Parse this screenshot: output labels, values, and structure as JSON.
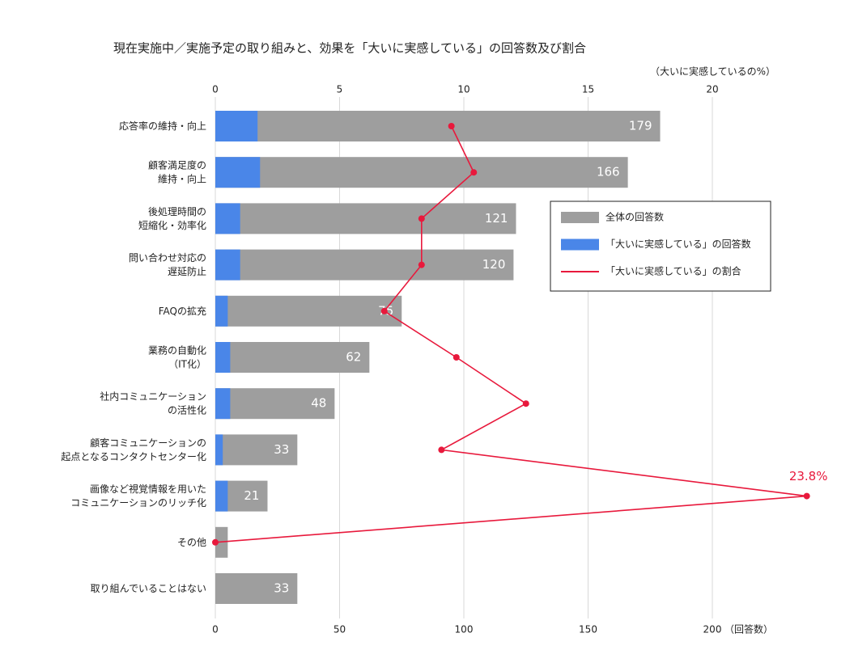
{
  "chart_data": {
    "type": "bar-line",
    "title": "現在実施中／実施予定の取り組みと、効果を「大いに実感している」の回答数及び割合",
    "xlabel": "（回答数）",
    "x2label": "（大いに実感しているの%）",
    "categories": [
      "応答率の維持・向上",
      "顧客満足度の\n維持・向上",
      "後処理時間の\n短縮化・効率化",
      "問い合わせ対応の\n遅延防止",
      "FAQの拡充",
      "業務の自動化\n（IT化）",
      "社内コミュニケーション\nの活性化",
      "顧客コミュニケーションの\n起点となるコンタクトセンター化",
      "画像など視覚情報を用いた\nコミュニケーションのリッチ化",
      "その他",
      "取り組んでいることはない"
    ],
    "series": [
      {
        "name": "全体の回答数",
        "color": "#9e9e9e",
        "values": [
          179,
          166,
          121,
          120,
          75,
          62,
          48,
          33,
          21,
          5,
          33
        ]
      },
      {
        "name": "「大いに実感している」の回答数",
        "color": "#4a86e8",
        "values": [
          17,
          18,
          10,
          10,
          5,
          6,
          6,
          3,
          5,
          0,
          null
        ]
      },
      {
        "name": "「大いに実感している」の割合",
        "color": "#e8193c",
        "axis": "y2",
        "values": [
          9.5,
          10.4,
          8.3,
          8.3,
          6.8,
          9.7,
          12.5,
          9.1,
          23.8,
          0,
          null
        ],
        "value_labels": [
          null,
          null,
          null,
          null,
          null,
          null,
          null,
          null,
          "23.8%",
          null,
          null
        ]
      }
    ],
    "xlim": [
      0,
      200
    ],
    "xticks": [
      0,
      50,
      100,
      150,
      200
    ],
    "y2lim": [
      0,
      20
    ],
    "y2ticks": [
      0,
      5,
      10,
      15,
      20
    ],
    "grid": true,
    "legend": "upper right"
  }
}
